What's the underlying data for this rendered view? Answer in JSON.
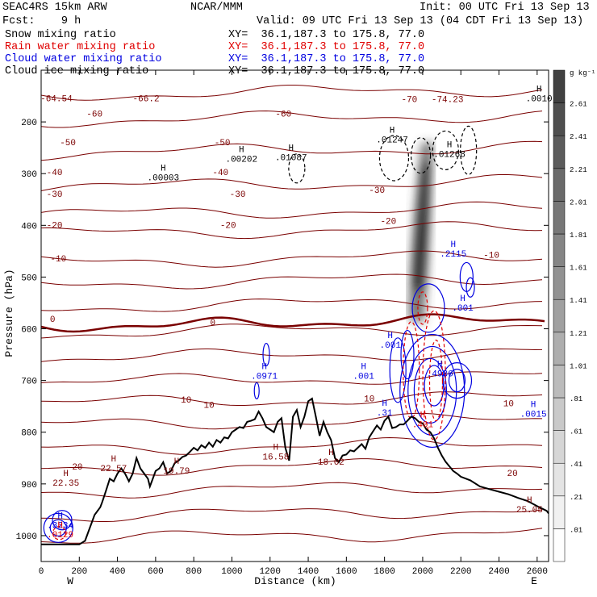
{
  "header": {
    "title": "SEAC4RS 15km ARW",
    "fcst": "Fcst:    9 h",
    "center": "NCAR/MMM",
    "init": "Init: 00 UTC Fri 13 Sep 13",
    "valid": "Valid: 09 UTC Fri 13 Sep 13 (04 CDT Fri 13 Sep 13)"
  },
  "fields": [
    {
      "name": "Snow mixing ratio",
      "xy": "XY=  36.1,187.3 to 175.8, 77.0",
      "color": "#000000"
    },
    {
      "name": "Rain water mixing ratio",
      "xy": "XY=  36.1,187.3 to 175.8, 77.0",
      "color": "#e00000"
    },
    {
      "name": "Cloud water mixing ratio",
      "xy": "XY=  36.1,187.3 to 175.8, 77.0",
      "color": "#0000e0"
    },
    {
      "name": "Cloud ice mixing ratio",
      "xy": "XY=  36.1,187.3 to 175.8, 77.0",
      "color": "#000000"
    }
  ],
  "colors": {
    "temperature": "#7a0000",
    "zero_isotherm": "#7a0000",
    "terrain": "#000000",
    "rain": "#e00000",
    "cloud_water": "#0000e0",
    "snow_ice": "#000000"
  },
  "chart_data": {
    "type": "cross-section",
    "xlabel": "Distance (km)",
    "ylabel": "Pressure (hPa)",
    "xlim": [
      0,
      2660
    ],
    "ylim": [
      1050,
      100
    ],
    "x_ticks": [
      0,
      200,
      400,
      600,
      800,
      1000,
      1200,
      1400,
      1600,
      1800,
      2000,
      2200,
      2400,
      2600
    ],
    "y_ticks": [
      1000,
      900,
      800,
      700,
      600,
      500,
      400,
      300,
      200
    ],
    "y_tick_labels": [
      "1000",
      "900",
      "800",
      "700",
      "600",
      "500",
      "400",
      "300",
      "200"
    ],
    "left_endpoint": "W",
    "right_endpoint": "E",
    "colorbar": {
      "unit": "g kg⁻¹",
      "levels": [
        ".01",
        ".21",
        ".41",
        ".61",
        ".81",
        "1.01",
        "1.21",
        "1.41",
        "1.61",
        "1.81",
        "2.01",
        "2.21",
        "2.41",
        "2.61"
      ]
    },
    "isotherm_labels": [
      {
        "text": "-64.54",
        "x": 80,
        "p": 160
      },
      {
        "text": "-66.2",
        "x": 550,
        "p": 160
      },
      {
        "text": "-70",
        "x": 1930,
        "p": 162
      },
      {
        "text": "-74.23",
        "x": 2130,
        "p": 162
      },
      {
        "text": "-60",
        "x": 280,
        "p": 190
      },
      {
        "text": "-60",
        "x": 1270,
        "p": 190
      },
      {
        "text": "-50",
        "x": 140,
        "p": 245
      },
      {
        "text": "-50",
        "x": 950,
        "p": 245
      },
      {
        "text": "-40",
        "x": 70,
        "p": 303
      },
      {
        "text": "-40",
        "x": 940,
        "p": 303
      },
      {
        "text": "-30",
        "x": 70,
        "p": 345
      },
      {
        "text": "-30",
        "x": 1030,
        "p": 345
      },
      {
        "text": "-30",
        "x": 1760,
        "p": 337
      },
      {
        "text": "-20",
        "x": 70,
        "p": 405
      },
      {
        "text": "-20",
        "x": 980,
        "p": 405
      },
      {
        "text": "-20",
        "x": 1820,
        "p": 397
      },
      {
        "text": "-10",
        "x": 90,
        "p": 470
      },
      {
        "text": "-10",
        "x": 2360,
        "p": 463
      },
      {
        "text": "0",
        "x": 60,
        "p": 587
      },
      {
        "text": "0",
        "x": 900,
        "p": 593
      },
      {
        "text": "10",
        "x": 760,
        "p": 743
      },
      {
        "text": "10",
        "x": 880,
        "p": 753
      },
      {
        "text": "10",
        "x": 1720,
        "p": 740
      },
      {
        "text": "10",
        "x": 2450,
        "p": 750
      },
      {
        "text": "20",
        "x": 190,
        "p": 872
      },
      {
        "text": "20",
        "x": 2470,
        "p": 885
      }
    ],
    "max_labels": [
      {
        "value": ".0010",
        "x": 2610,
        "p": 160,
        "color": "black"
      },
      {
        "value": ".01247",
        "x": 1840,
        "p": 240,
        "color": "black"
      },
      {
        "value": ".01268",
        "x": 2140,
        "p": 268,
        "color": "black"
      },
      {
        "value": ".00202",
        "x": 1050,
        "p": 277,
        "color": "black"
      },
      {
        "value": ".01087",
        "x": 1310,
        "p": 274,
        "color": "black"
      },
      {
        "value": ".00003",
        "x": 640,
        "p": 313,
        "color": "black"
      },
      {
        "value": ".2115",
        "x": 2160,
        "p": 460,
        "color": "blue"
      },
      {
        "value": ".001",
        "x": 2210,
        "p": 565,
        "color": "blue"
      },
      {
        "value": ".001",
        "x": 1830,
        "p": 637,
        "color": "blue"
      },
      {
        "value": ".0971",
        "x": 1170,
        "p": 697,
        "color": "blue"
      },
      {
        "value": ".001",
        "x": 1690,
        "p": 697,
        "color": "blue"
      },
      {
        "value": ".4936",
        "x": 2090,
        "p": 692,
        "color": "blue"
      },
      {
        "value": ".0015",
        "x": 2580,
        "p": 770,
        "color": "blue"
      },
      {
        "value": ".31",
        "x": 1800,
        "p": 768,
        "color": "blue"
      },
      {
        "value": ".401",
        "x": 2000,
        "p": 790,
        "color": "red"
      },
      {
        "value": "22.35",
        "x": 130,
        "p": 903,
        "color": "darkred"
      },
      {
        "value": "22.57",
        "x": 380,
        "p": 875,
        "color": "darkred"
      },
      {
        "value": "19.79",
        "x": 710,
        "p": 880,
        "color": "darkred"
      },
      {
        "value": "16.58",
        "x": 1230,
        "p": 853,
        "color": "darkred"
      },
      {
        "value": "18.02",
        "x": 1520,
        "p": 863,
        "color": "darkred"
      },
      {
        "value": "25.05",
        "x": 2560,
        "p": 955,
        "color": "darkred"
      },
      {
        "value": ".3234",
        "x": 100,
        "p": 985,
        "color": "blue"
      },
      {
        "value": ".0129",
        "x": 100,
        "p": 1003,
        "color": "red"
      }
    ],
    "terrain": {
      "x": [
        0,
        200,
        230,
        280,
        310,
        320,
        340,
        360,
        380,
        400,
        420,
        440,
        460,
        480,
        500,
        520,
        540,
        560,
        570,
        580,
        600,
        620,
        640,
        660,
        680,
        700,
        720,
        740,
        760,
        780,
        800,
        820,
        840,
        860,
        880,
        900,
        920,
        940,
        960,
        980,
        1000,
        1020,
        1040,
        1060,
        1080,
        1100,
        1120,
        1140,
        1160,
        1180,
        1200,
        1220,
        1240,
        1260,
        1280,
        1300,
        1320,
        1340,
        1360,
        1380,
        1400,
        1420,
        1440,
        1460,
        1480,
        1500,
        1520,
        1540,
        1560,
        1580,
        1600,
        1620,
        1640,
        1660,
        1680,
        1700,
        1720,
        1740,
        1760,
        1780,
        1800,
        1820,
        1840,
        1860,
        1880,
        1900,
        1920,
        1940,
        1960,
        1980,
        2000,
        2020,
        2040,
        2060,
        2080,
        2100,
        2120,
        2140,
        2160,
        2180,
        2200,
        2250,
        2300,
        2350,
        2400,
        2450,
        2500,
        2550,
        2600,
        2650,
        2660
      ],
      "p": [
        1017,
        1017,
        1010,
        960,
        945,
        935,
        913,
        890,
        895,
        880,
        870,
        880,
        895,
        880,
        850,
        870,
        880,
        890,
        905,
        895,
        875,
        870,
        858,
        880,
        875,
        860,
        855,
        848,
        845,
        838,
        830,
        835,
        825,
        830,
        820,
        828,
        815,
        820,
        810,
        812,
        800,
        795,
        790,
        792,
        780,
        778,
        775,
        760,
        773,
        790,
        795,
        800,
        780,
        773,
        830,
        855,
        770,
        757,
        790,
        770,
        740,
        735,
        770,
        807,
        780,
        800,
        815,
        850,
        858,
        845,
        843,
        835,
        837,
        830,
        823,
        832,
        810,
        798,
        787,
        795,
        778,
        770,
        792,
        790,
        785,
        785,
        778,
        770,
        773,
        780,
        783,
        795,
        800,
        812,
        830,
        845,
        857,
        866,
        875,
        880,
        886,
        893,
        905,
        910,
        915,
        920,
        927,
        933,
        943,
        952,
        957
      ]
    }
  }
}
